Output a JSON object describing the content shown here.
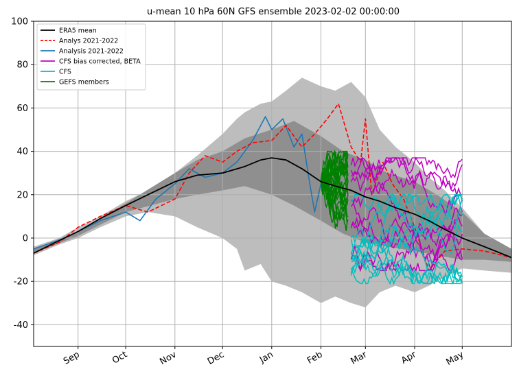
{
  "chart_data": {
    "type": "line",
    "title": "u-mean 10 hPa 60N GFS ensemble 2023-02-02 00:00:00",
    "xlabel": "",
    "ylabel": "",
    "ylim": [
      -50,
      100
    ],
    "xlim": [
      "2022-08-04",
      "2023-06-01"
    ],
    "yticks": [
      -40,
      -20,
      0,
      20,
      40,
      60,
      80,
      100
    ],
    "xticks": [
      {
        "label": "Sep",
        "date": "2022-09-01"
      },
      {
        "label": "Oct",
        "date": "2022-10-01"
      },
      {
        "label": "Nov",
        "date": "2022-11-01"
      },
      {
        "label": "Dec",
        "date": "2022-12-01"
      },
      {
        "label": "Jan",
        "date": "2023-01-01"
      },
      {
        "label": "Feb",
        "date": "2023-02-01"
      },
      {
        "label": "Mar",
        "date": "2023-03-01"
      },
      {
        "label": "Apr",
        "date": "2023-04-01"
      },
      {
        "label": "May",
        "date": "2023-05-01"
      }
    ],
    "grid": true,
    "legend_position": "top-left",
    "colors": {
      "era5": "#000000",
      "analys": "#ff0000",
      "analysis": "#1f77b4",
      "cfs_bc": "#bf00bf",
      "cfs": "#00bfbf",
      "gefs": "#008000",
      "band_outer": "#bdbdbd",
      "band_inner": "#8f8f8f"
    },
    "legend": [
      {
        "label": "ERA5 mean",
        "key": "era5",
        "dash": false
      },
      {
        "label": "Analys 2021-2022",
        "key": "analys",
        "dash": true
      },
      {
        "label": "Analysis 2021-2022",
        "key": "analysis",
        "dash": false
      },
      {
        "label": "CFS bias corrected, BETA",
        "key": "cfs_bc",
        "dash": false
      },
      {
        "label": "CFS",
        "key": "cfs",
        "dash": false
      },
      {
        "label": "GEFS members",
        "key": "gefs",
        "dash": false
      }
    ],
    "outer_band": {
      "x": [
        "2022-08-04",
        "2022-08-20",
        "2022-09-01",
        "2022-09-15",
        "2022-10-01",
        "2022-10-15",
        "2022-11-01",
        "2022-11-15",
        "2022-12-01",
        "2022-12-10",
        "2022-12-15",
        "2022-12-25",
        "2023-01-01",
        "2023-01-10",
        "2023-01-20",
        "2023-02-01",
        "2023-02-10",
        "2023-02-20",
        "2023-03-01",
        "2023-03-10",
        "2023-03-20",
        "2023-04-01",
        "2023-04-10",
        "2023-04-20",
        "2023-05-01",
        "2023-05-15",
        "2023-06-01"
      ],
      "upper": [
        -4,
        0,
        5,
        10,
        17,
        22,
        30,
        38,
        48,
        55,
        58,
        62,
        63,
        68,
        74,
        70,
        68,
        72,
        65,
        50,
        42,
        35,
        28,
        22,
        14,
        2,
        -5
      ],
      "lower": [
        -8,
        -3,
        0,
        5,
        10,
        12,
        10,
        5,
        0,
        -5,
        -15,
        -12,
        -20,
        -22,
        -25,
        -30,
        -27,
        -30,
        -32,
        -25,
        -22,
        -25,
        -22,
        -18,
        -14,
        -15,
        -16
      ]
    },
    "inner_band": {
      "x": [
        "2022-08-04",
        "2022-09-01",
        "2022-10-01",
        "2022-11-01",
        "2022-11-15",
        "2022-12-01",
        "2022-12-15",
        "2023-01-01",
        "2023-01-15",
        "2023-02-01",
        "2023-02-15",
        "2023-03-01",
        "2023-03-15",
        "2023-04-01",
        "2023-04-15",
        "2023-05-01",
        "2023-05-15",
        "2023-06-01"
      ],
      "upper": [
        -5,
        3,
        16,
        30,
        36,
        40,
        46,
        50,
        54,
        47,
        40,
        36,
        30,
        26,
        20,
        12,
        2,
        -5
      ],
      "lower": [
        -7,
        1,
        12,
        18,
        20,
        22,
        24,
        20,
        15,
        8,
        2,
        -2,
        -4,
        -6,
        -8,
        -10,
        -10,
        -11
      ]
    },
    "series": [
      {
        "name": "ERA5 mean",
        "x": [
          "2022-08-04",
          "2022-08-15",
          "2022-09-01",
          "2022-09-15",
          "2022-10-01",
          "2022-10-15",
          "2022-11-01",
          "2022-11-15",
          "2022-12-01",
          "2022-12-15",
          "2022-12-25",
          "2023-01-01",
          "2023-01-10",
          "2023-01-20",
          "2023-02-01",
          "2023-02-10",
          "2023-02-20",
          "2023-03-01",
          "2023-03-10",
          "2023-03-20",
          "2023-04-01",
          "2023-04-10",
          "2023-04-20",
          "2023-05-01",
          "2023-05-15",
          "2023-06-01"
        ],
        "y": [
          -7,
          -3,
          3,
          9,
          15,
          20,
          26,
          29,
          30,
          33,
          36,
          37,
          36,
          32,
          26,
          24,
          22,
          19,
          17,
          14,
          11,
          8,
          4,
          0,
          -4,
          -9
        ]
      },
      {
        "name": "Analys 2021-2022",
        "x": [
          "2022-08-04",
          "2022-08-20",
          "2022-09-01",
          "2022-09-15",
          "2022-10-01",
          "2022-10-15",
          "2022-11-01",
          "2022-11-10",
          "2022-11-20",
          "2022-12-01",
          "2022-12-10",
          "2022-12-20",
          "2023-01-01",
          "2023-01-10",
          "2023-01-20",
          "2023-01-28",
          "2023-02-05",
          "2023-02-12",
          "2023-02-20",
          "2023-02-26",
          "2023-03-01",
          "2023-03-05",
          "2023-03-12",
          "2023-03-18",
          "2023-03-25",
          "2023-04-01",
          "2023-04-10",
          "2023-04-20",
          "2023-05-01",
          "2023-05-15",
          "2023-06-01"
        ],
        "y": [
          -7,
          -2,
          5,
          10,
          15,
          12,
          18,
          30,
          38,
          35,
          40,
          44,
          45,
          52,
          42,
          48,
          55,
          62,
          42,
          35,
          55,
          20,
          35,
          25,
          18,
          5,
          -15,
          -6,
          -5,
          -6,
          -9
        ]
      },
      {
        "name": "Analysis 2021-2022",
        "x": [
          "2022-08-04",
          "2022-08-20",
          "2022-09-01",
          "2022-09-15",
          "2022-10-01",
          "2022-10-10",
          "2022-10-20",
          "2022-11-01",
          "2022-11-10",
          "2022-11-20",
          "2022-12-01",
          "2022-12-10",
          "2022-12-20",
          "2022-12-28",
          "2023-01-01",
          "2023-01-08",
          "2023-01-15",
          "2023-01-20",
          "2023-01-25",
          "2023-01-28",
          "2023-02-01"
        ],
        "y": [
          -5,
          -1,
          3,
          8,
          12,
          8,
          18,
          25,
          32,
          28,
          30,
          35,
          45,
          56,
          50,
          55,
          42,
          48,
          25,
          12,
          25
        ]
      }
    ],
    "gefs_members": {
      "start": "2023-02-01",
      "end": "2023-02-18",
      "start_value": 26,
      "range": [
        -10,
        40
      ],
      "count": 20
    },
    "cfs_bc_members": {
      "start": "2023-02-20",
      "end": "2023-05-01",
      "range": [
        -15,
        37
      ],
      "count": 10
    },
    "cfs_members": {
      "start": "2023-02-20",
      "end": "2023-05-01",
      "range": [
        -21,
        20
      ],
      "count": 10
    }
  }
}
